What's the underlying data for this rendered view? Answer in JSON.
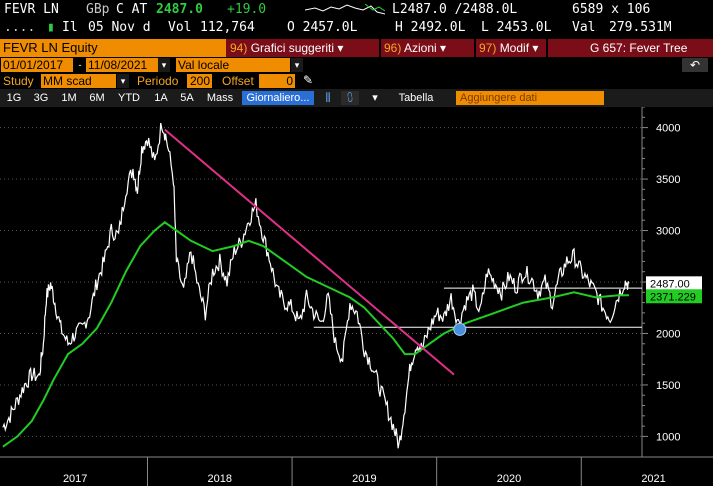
{
  "header": {
    "ticker": "FEVR LN",
    "currency": "GBp",
    "c_at": "C AT",
    "last": "2487.0",
    "change": "+19.0",
    "bid_ask": "L2487.0 /2488.0L",
    "size": "6589 x 106",
    "line2_prefix": "....",
    "il_label": "Il",
    "date": "05 Nov d",
    "vol_label": "Vol",
    "vol": "112,764",
    "open": "O 2457.0L",
    "high": "H 2492.0L",
    "low": "L 2453.0L",
    "val_label": "Val",
    "val": "279.531M"
  },
  "toolbar": {
    "security": "FEVR LN Equity",
    "menu1_num": "94)",
    "menu1": "Grafici suggeriti",
    "menu2_num": "96)",
    "menu2": "Azioni",
    "menu3_num": "97)",
    "menu3": "Modif",
    "title": "G 657: Fever Tree",
    "back_icon": "undo-icon"
  },
  "range": {
    "start": "01/01/2017",
    "end": "11/08/2021",
    "currency_value": "Val locale"
  },
  "study": {
    "label": "Study",
    "value": "MM scad",
    "period_label": "Periodo",
    "period": "200",
    "offset_label": "Offset",
    "offset": "0"
  },
  "tabs": [
    "1G",
    "3G",
    "1M",
    "6M",
    "YTD",
    "1A",
    "5A",
    "Mass"
  ],
  "view": {
    "active": "Giornaliero",
    "table": "Tabella",
    "add_data": "Aggiungere dati"
  },
  "chart_data": {
    "type": "line",
    "ylim": [
      800,
      4200
    ],
    "ytick_labels": [
      "1000",
      "1500",
      "2000",
      "2500",
      "3000",
      "3500",
      "4000"
    ],
    "yticks": [
      1000,
      1500,
      2000,
      2500,
      3000,
      3500,
      4000
    ],
    "xtick_labels": [
      "2017",
      "2018",
      "2019",
      "2020",
      "2021"
    ],
    "last_price_label": "2487.00",
    "ma_label": "2371.229",
    "colors": {
      "price": "#ffffff",
      "ma": "#22cc22",
      "trend": "#e0308a",
      "last": "#ffffff"
    },
    "price": [
      [
        2017.0,
        1090
      ],
      [
        2017.05,
        1200
      ],
      [
        2017.1,
        1350
      ],
      [
        2017.15,
        1500
      ],
      [
        2017.2,
        1600
      ],
      [
        2017.25,
        1580
      ],
      [
        2017.28,
        1900
      ],
      [
        2017.3,
        2350
      ],
      [
        2017.33,
        2480
      ],
      [
        2017.36,
        2300
      ],
      [
        2017.4,
        2050
      ],
      [
        2017.45,
        1900
      ],
      [
        2017.5,
        2000
      ],
      [
        2017.55,
        2050
      ],
      [
        2017.6,
        2200
      ],
      [
        2017.65,
        2500
      ],
      [
        2017.7,
        2700
      ],
      [
        2017.75,
        3000
      ],
      [
        2017.8,
        2950
      ],
      [
        2017.85,
        3400
      ],
      [
        2017.9,
        3600
      ],
      [
        2017.93,
        3400
      ],
      [
        2017.96,
        3800
      ],
      [
        2018.0,
        3900
      ],
      [
        2018.05,
        3650
      ],
      [
        2018.1,
        4050
      ],
      [
        2018.13,
        3900
      ],
      [
        2018.18,
        3500
      ],
      [
        2018.2,
        2700
      ],
      [
        2018.25,
        2400
      ],
      [
        2018.3,
        2800
      ],
      [
        2018.35,
        2450
      ],
      [
        2018.4,
        2200
      ],
      [
        2018.45,
        2600
      ],
      [
        2018.5,
        2700
      ],
      [
        2018.55,
        2500
      ],
      [
        2018.6,
        2800
      ],
      [
        2018.65,
        2900
      ],
      [
        2018.7,
        3100
      ],
      [
        2018.75,
        3250
      ],
      [
        2018.8,
        2950
      ],
      [
        2018.85,
        2700
      ],
      [
        2018.9,
        2400
      ],
      [
        2018.95,
        2300
      ],
      [
        2019.0,
        2250
      ],
      [
        2019.05,
        2100
      ],
      [
        2019.1,
        2350
      ],
      [
        2019.15,
        2200
      ],
      [
        2019.2,
        2100
      ],
      [
        2019.25,
        2350
      ],
      [
        2019.3,
        1900
      ],
      [
        2019.35,
        1750
      ],
      [
        2019.4,
        2300
      ],
      [
        2019.45,
        2200
      ],
      [
        2019.5,
        1850
      ],
      [
        2019.55,
        1700
      ],
      [
        2019.6,
        1500
      ],
      [
        2019.65,
        1300
      ],
      [
        2019.7,
        1100
      ],
      [
        2019.74,
        910
      ],
      [
        2019.78,
        1300
      ],
      [
        2019.82,
        1700
      ],
      [
        2019.86,
        1900
      ],
      [
        2019.9,
        1850
      ],
      [
        2019.95,
        2050
      ],
      [
        2020.0,
        2200
      ],
      [
        2020.05,
        2150
      ],
      [
        2020.1,
        2350
      ],
      [
        2020.15,
        2100
      ],
      [
        2020.2,
        2300
      ],
      [
        2020.25,
        2400
      ],
      [
        2020.3,
        2200
      ],
      [
        2020.35,
        2600
      ],
      [
        2020.4,
        2500
      ],
      [
        2020.45,
        2400
      ],
      [
        2020.5,
        2550
      ],
      [
        2020.55,
        2450
      ],
      [
        2020.6,
        2600
      ],
      [
        2020.65,
        2550
      ],
      [
        2020.7,
        2400
      ],
      [
        2020.75,
        2500
      ],
      [
        2020.8,
        2300
      ],
      [
        2020.85,
        2550
      ],
      [
        2020.9,
        2700
      ],
      [
        2020.95,
        2750
      ],
      [
        2021.0,
        2600
      ],
      [
        2021.05,
        2500
      ],
      [
        2021.1,
        2400
      ],
      [
        2021.15,
        2250
      ],
      [
        2021.2,
        2150
      ],
      [
        2021.25,
        2350
      ],
      [
        2021.3,
        2500
      ],
      [
        2021.33,
        2487
      ]
    ],
    "ma": [
      [
        2017.0,
        900
      ],
      [
        2017.1,
        1000
      ],
      [
        2017.2,
        1150
      ],
      [
        2017.28,
        1350
      ],
      [
        2017.35,
        1550
      ],
      [
        2017.45,
        1800
      ],
      [
        2017.55,
        1900
      ],
      [
        2017.65,
        2050
      ],
      [
        2017.75,
        2300
      ],
      [
        2017.85,
        2600
      ],
      [
        2017.95,
        2850
      ],
      [
        2018.05,
        3000
      ],
      [
        2018.12,
        3080
      ],
      [
        2018.2,
        3000
      ],
      [
        2018.3,
        2900
      ],
      [
        2018.45,
        2800
      ],
      [
        2018.6,
        2850
      ],
      [
        2018.7,
        2900
      ],
      [
        2018.8,
        2850
      ],
      [
        2018.95,
        2700
      ],
      [
        2019.1,
        2550
      ],
      [
        2019.25,
        2450
      ],
      [
        2019.4,
        2350
      ],
      [
        2019.5,
        2250
      ],
      [
        2019.6,
        2100
      ],
      [
        2019.7,
        1950
      ],
      [
        2019.78,
        1800
      ],
      [
        2019.85,
        1800
      ],
      [
        2019.95,
        1900
      ],
      [
        2020.05,
        2000
      ],
      [
        2020.2,
        2100
      ],
      [
        2020.4,
        2200
      ],
      [
        2020.6,
        2300
      ],
      [
        2020.8,
        2350
      ],
      [
        2020.95,
        2400
      ],
      [
        2021.1,
        2350
      ],
      [
        2021.25,
        2370
      ],
      [
        2021.33,
        2371
      ]
    ],
    "trendline": [
      [
        2018.12,
        3980
      ],
      [
        2020.12,
        1600
      ]
    ],
    "support": 2060,
    "resistance": 2440
  }
}
